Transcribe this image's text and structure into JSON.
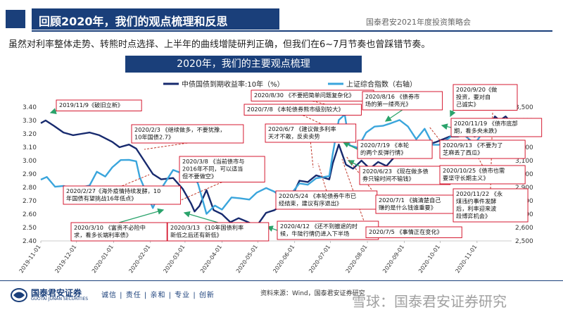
{
  "header": {
    "title": "回顾2020年，我们的观点梳理和反思",
    "right": "国泰君安2021年度投资策略会"
  },
  "subtitle": "虽然对利率整体走势、转熊时点选择、上半年的曲线增陡研判正确，但我们在6~7月节奏也曾踩错节奏。",
  "chart_title": "2020年，我们的主要观点梳理",
  "footer": {
    "brand": "国泰君安证券",
    "brand_en": "GUOTAI JUNAN SECURITIES",
    "motto": "诚信 | 责任 | 亲和 | 专业 | 创新",
    "source": "资料来源：Wind，国泰君安证券研究",
    "watermark": "雪球：国泰君安证券研究"
  },
  "colors": {
    "navy": "#1a3f7a",
    "bond": "#172a6e",
    "index": "#3aa5dc",
    "box_border": "#d0021b",
    "arrow": "#2aa36b"
  },
  "chart_data": {
    "type": "line",
    "title": "2020年，我们的主要观点梳理",
    "x_ticks": [
      "2019-11-01",
      "2019-12-01",
      "2020-01-01",
      "2020-02-01",
      "2020-03-01",
      "2020-04-01",
      "2020-05-01",
      "2020-06-01",
      "2020-07-01",
      "2020-08-01",
      "2020-09-01",
      "2020-10-01",
      "2020-11-01"
    ],
    "x_range": [
      "2019-11-01",
      "2020-11-30"
    ],
    "y_left": {
      "min": 2.4,
      "max": 3.4,
      "ticks": [
        "3.40",
        "3.30",
        "3.20",
        "3.10",
        "3.00",
        "2.90",
        "2.80",
        "2.70",
        "2.60",
        "2.50",
        "2.40"
      ]
    },
    "y_right": {
      "min": 2500,
      "max": 3500,
      "ticks": [
        "3,500",
        "3,400",
        "3,300",
        "3,200",
        "3,100",
        "3,000",
        "2,900",
        "2,800",
        "2,700",
        "2,600",
        "2,500"
      ]
    },
    "legend": "top-center",
    "series": [
      {
        "name": "中债国债到期收益率:10年（%）",
        "axis": "left",
        "points": [
          [
            "2019-11-01",
            3.28
          ],
          [
            "2019-11-05",
            3.3
          ],
          [
            "2019-11-12",
            3.26
          ],
          [
            "2019-11-20",
            3.21
          ],
          [
            "2019-11-28",
            3.19
          ],
          [
            "2019-12-05",
            3.2
          ],
          [
            "2019-12-12",
            3.21
          ],
          [
            "2019-12-20",
            3.19
          ],
          [
            "2019-12-31",
            3.14
          ],
          [
            "2020-01-06",
            3.1
          ],
          [
            "2020-01-14",
            3.12
          ],
          [
            "2020-01-20",
            3.09
          ],
          [
            "2020-02-03",
            2.9
          ],
          [
            "2020-02-10",
            2.86
          ],
          [
            "2020-02-20",
            2.87
          ],
          [
            "2020-02-28",
            2.79
          ],
          [
            "2020-03-06",
            2.68
          ],
          [
            "2020-03-09",
            2.62
          ],
          [
            "2020-03-13",
            2.66
          ],
          [
            "2020-03-19",
            2.78
          ],
          [
            "2020-03-25",
            2.63
          ],
          [
            "2020-04-01",
            2.6
          ],
          [
            "2020-04-08",
            2.54
          ],
          [
            "2020-04-15",
            2.57
          ],
          [
            "2020-04-23",
            2.54
          ],
          [
            "2020-04-30",
            2.51
          ],
          [
            "2020-05-08",
            2.61
          ],
          [
            "2020-05-15",
            2.63
          ],
          [
            "2020-05-22",
            2.67
          ],
          [
            "2020-05-29",
            2.72
          ],
          [
            "2020-06-05",
            2.85
          ],
          [
            "2020-06-12",
            2.84
          ],
          [
            "2020-06-19",
            2.89
          ],
          [
            "2020-06-30",
            2.86
          ],
          [
            "2020-07-03",
            2.98
          ],
          [
            "2020-07-08",
            3.12
          ],
          [
            "2020-07-14",
            2.97
          ],
          [
            "2020-07-20",
            2.94
          ],
          [
            "2020-07-27",
            3.0
          ],
          [
            "2020-08-03",
            2.94
          ],
          [
            "2020-08-10",
            2.99
          ],
          [
            "2020-08-17",
            2.96
          ],
          [
            "2020-08-24",
            3.03
          ],
          [
            "2020-08-31",
            3.07
          ],
          [
            "2020-09-07",
            3.1
          ],
          [
            "2020-09-14",
            3.1
          ],
          [
            "2020-09-21",
            3.12
          ],
          [
            "2020-09-28",
            3.14
          ],
          [
            "2020-10-09",
            3.18
          ],
          [
            "2020-10-16",
            3.18
          ],
          [
            "2020-10-23",
            3.2
          ],
          [
            "2020-10-30",
            3.18
          ],
          [
            "2020-11-06",
            3.2
          ],
          [
            "2020-11-12",
            3.26
          ],
          [
            "2020-11-16",
            3.33
          ],
          [
            "2020-11-20",
            3.3
          ],
          [
            "2020-11-25",
            3.33
          ],
          [
            "2020-11-30",
            3.28
          ]
        ]
      },
      {
        "name": "上证综合指数（右轴）",
        "axis": "right",
        "points": [
          [
            "2019-11-01",
            2958
          ],
          [
            "2019-11-06",
            2978
          ],
          [
            "2019-11-13",
            2905
          ],
          [
            "2019-11-20",
            2911
          ],
          [
            "2019-11-28",
            2889
          ],
          [
            "2019-12-05",
            2899
          ],
          [
            "2019-12-12",
            2915
          ],
          [
            "2019-12-18",
            3017
          ],
          [
            "2019-12-25",
            2981
          ],
          [
            "2019-12-31",
            3050
          ],
          [
            "2020-01-07",
            3104
          ],
          [
            "2020-01-14",
            3106
          ],
          [
            "2020-01-20",
            3095
          ],
          [
            "2020-01-23",
            2976
          ],
          [
            "2020-02-03",
            2746
          ],
          [
            "2020-02-10",
            2890
          ],
          [
            "2020-02-20",
            3030
          ],
          [
            "2020-02-25",
            3013
          ],
          [
            "2020-03-05",
            3071
          ],
          [
            "2020-03-12",
            2923
          ],
          [
            "2020-03-19",
            2702
          ],
          [
            "2020-03-26",
            2764
          ],
          [
            "2020-04-01",
            2734
          ],
          [
            "2020-04-09",
            2825
          ],
          [
            "2020-04-16",
            2819
          ],
          [
            "2020-04-24",
            2809
          ],
          [
            "2020-04-30",
            2860
          ],
          [
            "2020-05-08",
            2895
          ],
          [
            "2020-05-15",
            2868
          ],
          [
            "2020-05-22",
            2813
          ],
          [
            "2020-05-29",
            2852
          ],
          [
            "2020-06-05",
            2930
          ],
          [
            "2020-06-12",
            2920
          ],
          [
            "2020-06-19",
            2968
          ],
          [
            "2020-06-30",
            2985
          ],
          [
            "2020-07-03",
            3152
          ],
          [
            "2020-07-08",
            3403
          ],
          [
            "2020-07-13",
            3444
          ],
          [
            "2020-07-17",
            3214
          ],
          [
            "2020-07-24",
            3196
          ],
          [
            "2020-07-31",
            3310
          ],
          [
            "2020-08-07",
            3354
          ],
          [
            "2020-08-14",
            3360
          ],
          [
            "2020-08-21",
            3380
          ],
          [
            "2020-08-28",
            3403
          ],
          [
            "2020-09-04",
            3355
          ],
          [
            "2020-09-11",
            3260
          ],
          [
            "2020-09-18",
            3338
          ],
          [
            "2020-09-25",
            3219
          ],
          [
            "2020-09-30",
            3218
          ],
          [
            "2020-10-09",
            3272
          ],
          [
            "2020-10-16",
            3336
          ],
          [
            "2020-10-23",
            3278
          ],
          [
            "2020-10-30",
            3225
          ],
          [
            "2020-11-06",
            3312
          ],
          [
            "2020-11-13",
            3310
          ],
          [
            "2020-11-20",
            3377
          ],
          [
            "2020-11-25",
            3362
          ],
          [
            "2020-11-30",
            3392
          ]
        ]
      }
    ],
    "annotations": [
      {
        "text": [
          "2019/11/9《破旧立新》"
        ]
      },
      {
        "text": [
          "2020/2/3 《继续做多，不要犹豫，",
          "10年国债2.7》"
        ]
      },
      {
        "text": [
          "2020/2/27《海外疫情持续发酵，10",
          "年国债有望挑战16年低点》"
        ]
      },
      {
        "text": [
          "2020/3/8 《当前债市与",
          "2016年不同，可以适当",
          "但不要做空》"
        ]
      },
      {
        "text": [
          "2020/3/10 《富贵不必险中",
          "求，看多长端利率债》"
        ]
      },
      {
        "text": [
          "2020/3/13 《10年国债利率",
          "新低之后还有新低》"
        ]
      },
      {
        "text": [
          "2020/4/12 《还不到撤退的时",
          "候，牛陡行情仍进入下半场"
        ]
      },
      {
        "text": [
          "2020/5/24 《本轮债券牛市已",
          "经结束，建议有序退出》"
        ]
      },
      {
        "text": [
          "2020/6/7 《建议做多利率",
          "天才不敢，反卖卖势"
        ]
      },
      {
        "text": [
          "2020/7/8 《本轮债券熊市级别较大》"
        ]
      },
      {
        "text": [
          "2020/8/30 《不要把简单问题复杂化》"
        ]
      },
      {
        "text": [
          "2020/8/16 《债券市",
          "场的第一缕亮光》"
        ]
      },
      {
        "text": [
          "2020/7/19 《本轮",
          "的两个反弹行情》"
        ]
      },
      {
        "text": [
          "2020/6/23 《现在做多债",
          "券只输时间不输钱》"
        ]
      },
      {
        "text": [
          "2020/7/1 《搞清楚自己",
          "赚的是什么钱谁重要》"
        ]
      },
      {
        "text": [
          "2020/7/5 《事情正在变化》"
        ]
      },
      {
        "text": [
          "2020/9/20《做",
          "投资，要对自",
          "己诚实》"
        ]
      },
      {
        "text": [
          "2020/11/19 《债市底部",
          "期，看多央未跌》"
        ]
      },
      {
        "text": [
          "2020/9/13 《不要为了",
          "芝麻丢了西瓜》"
        ]
      },
      {
        "text": [
          "2020/10/25《债市也需",
          "要坚守长期主义》"
        ]
      },
      {
        "text": [
          "2020/11/22 《永",
          "煤违约事件发酵",
          "后，利率迎来波",
          "段博弈机会》"
        ]
      }
    ]
  }
}
